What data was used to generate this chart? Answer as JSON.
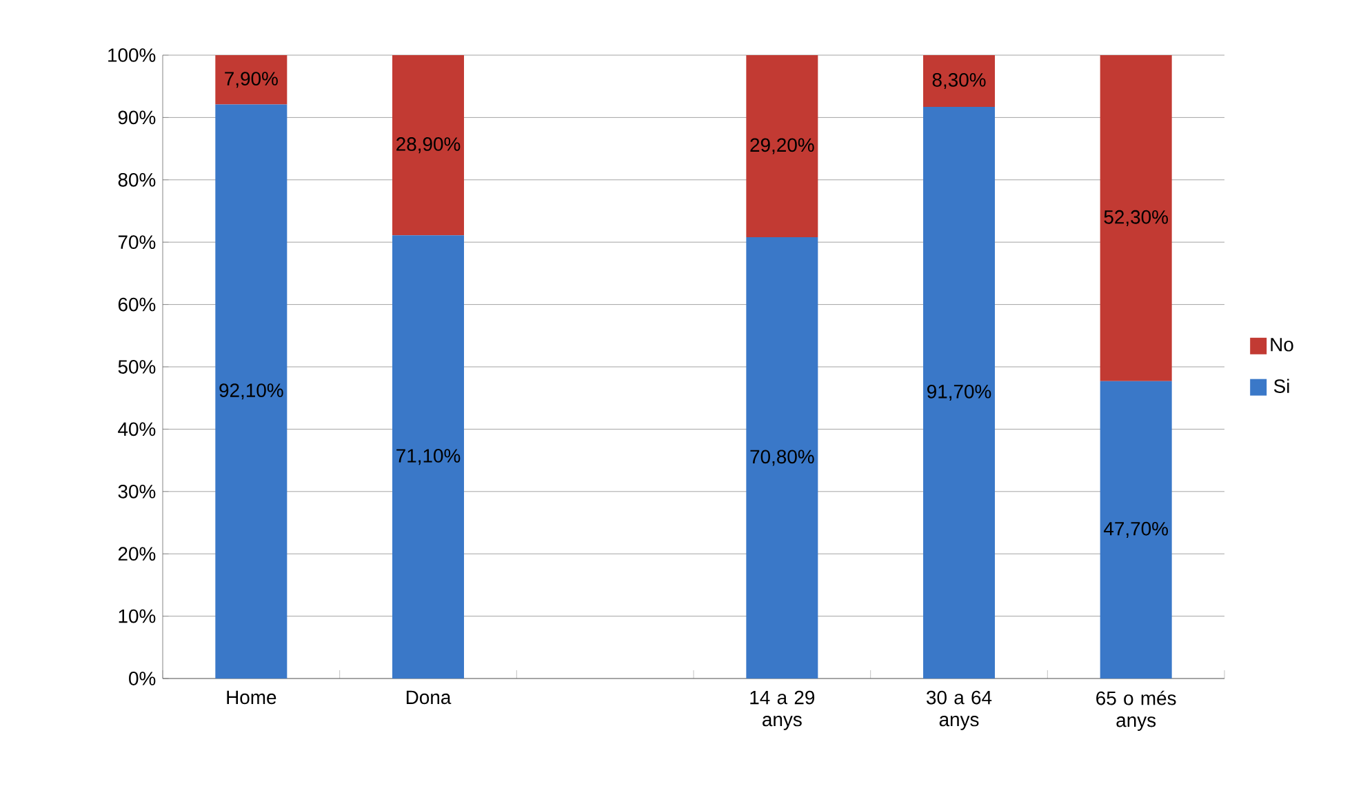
{
  "chart_data": {
    "type": "bar",
    "stacked": true,
    "categories": [
      "Home",
      "Dona",
      null,
      "14 a 29 anys",
      "30 a 64 anys",
      "65 o més anys"
    ],
    "series": [
      {
        "name": "Si",
        "color": "#3a78c8",
        "values": [
          92.1,
          71.1,
          null,
          70.8,
          91.7,
          47.7
        ],
        "value_labels": [
          "92,10%",
          "71,10%",
          null,
          "70,80%",
          "91,70%",
          "47,70%"
        ]
      },
      {
        "name": "No",
        "color": "#c23a33",
        "values": [
          7.9,
          28.9,
          null,
          29.2,
          8.3,
          52.3
        ],
        "value_labels": [
          "7,90%",
          "28,90%",
          null,
          "29,20%",
          "8,30%",
          "52,30%"
        ]
      }
    ],
    "ylim": [
      0,
      100
    ],
    "yticks": [
      {
        "value": 0,
        "label": "0%"
      },
      {
        "value": 10,
        "label": "10%"
      },
      {
        "value": 20,
        "label": "20%"
      },
      {
        "value": 30,
        "label": "30%"
      },
      {
        "value": 40,
        "label": "40%"
      },
      {
        "value": 50,
        "label": "50%"
      },
      {
        "value": 60,
        "label": "60%"
      },
      {
        "value": 70,
        "label": "70%"
      },
      {
        "value": 80,
        "label": "80%"
      },
      {
        "value": 90,
        "label": "90%"
      },
      {
        "value": 100,
        "label": "100%"
      }
    ],
    "grid": "y",
    "legend": "right"
  }
}
